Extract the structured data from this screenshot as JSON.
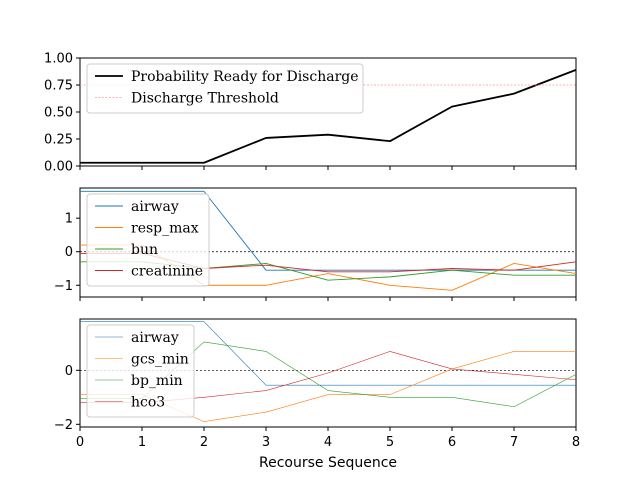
{
  "chart_data": [
    {
      "type": "line",
      "x": [
        0,
        1,
        2,
        3,
        4,
        5,
        6,
        7,
        8
      ],
      "xlim": [
        0,
        8
      ],
      "ylim": [
        0,
        1
      ],
      "yticks": [
        "0.00",
        "0.25",
        "0.50",
        "0.75",
        "1.00"
      ],
      "yticks_values": [
        0,
        0.25,
        0.5,
        0.75,
        1.0
      ],
      "legend_position": "upper-left",
      "series": [
        {
          "name": "Probability Ready for Discharge",
          "color": "#000000",
          "values": [
            0.03,
            0.03,
            0.03,
            0.26,
            0.29,
            0.23,
            0.55,
            0.67,
            0.89
          ],
          "style": "solid"
        },
        {
          "name": "Discharge Threshold",
          "color": "#ff9999",
          "values": [
            0.75,
            0.75,
            0.75,
            0.75,
            0.75,
            0.75,
            0.75,
            0.75,
            0.75
          ],
          "style": "dashed"
        }
      ]
    },
    {
      "type": "line",
      "x": [
        0,
        1,
        2,
        3,
        4,
        5,
        6,
        7,
        8
      ],
      "xlim": [
        0,
        8
      ],
      "ylim": [
        -1.35,
        1.9
      ],
      "yticks": [
        "1",
        "0",
        "−1"
      ],
      "yticks_values": [
        1,
        0,
        -1
      ],
      "zero_line": true,
      "legend_position": "upper-left",
      "series": [
        {
          "name": "airway",
          "color": "#1f77b4",
          "values": [
            1.8,
            1.8,
            1.8,
            -0.55,
            -0.55,
            -0.55,
            -0.55,
            -0.55,
            -0.55
          ]
        },
        {
          "name": "resp_max",
          "color": "#ff7f0e",
          "values": [
            0.2,
            0.2,
            -1.0,
            -1.0,
            -0.65,
            -1.0,
            -1.15,
            -0.35,
            -0.65
          ]
        },
        {
          "name": "bun",
          "color": "#2ca02c",
          "values": [
            -0.3,
            -0.3,
            -0.5,
            -0.35,
            -0.85,
            -0.75,
            -0.55,
            -0.7,
            -0.7
          ]
        },
        {
          "name": "creatinine",
          "color": "#d62728",
          "values": [
            -0.05,
            -0.05,
            -0.5,
            -0.4,
            -0.6,
            -0.6,
            -0.5,
            -0.55,
            -0.3
          ]
        }
      ]
    },
    {
      "type": "line",
      "x": [
        0,
        1,
        2,
        3,
        4,
        5,
        6,
        7,
        8
      ],
      "xlim": [
        0,
        8
      ],
      "ylim": [
        -2.1,
        1.9
      ],
      "yticks": [
        "0",
        "−2"
      ],
      "yticks_values": [
        0,
        -2
      ],
      "xticks": [
        "0",
        "1",
        "2",
        "3",
        "4",
        "5",
        "6",
        "7",
        "8"
      ],
      "xlabel": "Recourse Sequence",
      "zero_line": true,
      "legend_position": "upper-left",
      "series": [
        {
          "name": "airway",
          "color": "#1f77b4",
          "values": [
            1.8,
            1.8,
            1.8,
            -0.55,
            -0.55,
            -0.55,
            -0.55,
            -0.55,
            -0.55
          ]
        },
        {
          "name": "gcs_min",
          "color": "#ff7f0e",
          "values": [
            -0.9,
            -0.9,
            -1.9,
            -1.55,
            -0.9,
            -0.9,
            0.05,
            0.7,
            0.7
          ]
        },
        {
          "name": "bp_min",
          "color": "#2ca02c",
          "values": [
            -1.05,
            -1.05,
            1.05,
            0.7,
            -0.75,
            -1.0,
            -1.0,
            -1.35,
            -0.15
          ]
        },
        {
          "name": "hco3",
          "color": "#d62728",
          "values": [
            -1.2,
            -1.2,
            -1.0,
            -0.75,
            -0.1,
            0.7,
            0.05,
            -0.15,
            -0.35
          ]
        }
      ]
    }
  ]
}
